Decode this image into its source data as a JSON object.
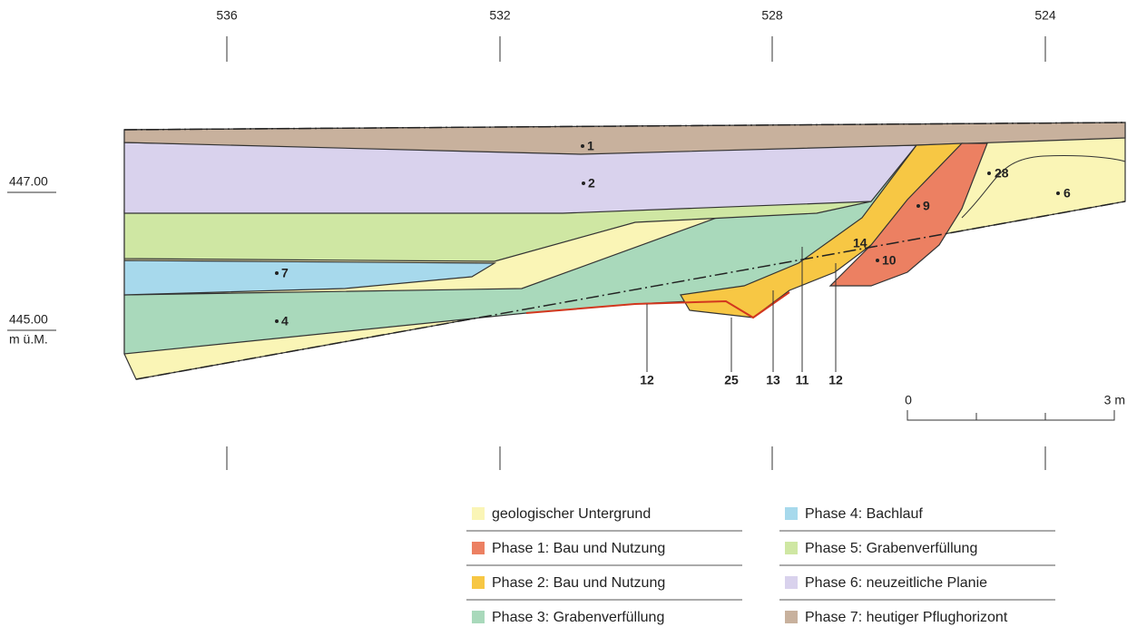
{
  "grid_labels": [
    "536",
    "532",
    "528",
    "524"
  ],
  "elevation_labels": [
    "447.00",
    "445.00",
    "m ü.M."
  ],
  "layer_labels": [
    "1",
    "2",
    "7",
    "4",
    "9",
    "14",
    "10",
    "28",
    "6"
  ],
  "find_labels": [
    "12",
    "25",
    "13",
    "11",
    "12"
  ],
  "scale": {
    "start": "0",
    "end": "3 m"
  },
  "legend": [
    {
      "label": "geologischer Untergrund",
      "color": "#faf5b6"
    },
    {
      "label": "Phase 1: Bau und Nutzung",
      "color": "#ec8062"
    },
    {
      "label": "Phase 2: Bau und Nutzung",
      "color": "#f7c744"
    },
    {
      "label": "Phase 3: Grabenverfüllung",
      "color": "#a9d9bb"
    },
    {
      "label": "Phase 4: Bachlauf",
      "color": "#a7d9ec"
    },
    {
      "label": "Phase 5: Grabenverfüllung",
      "color": "#cfe7a3"
    },
    {
      "label": "Phase 6: neuzeitliche Planie",
      "color": "#d9d2ed"
    },
    {
      "label": "Phase 7: heutiger Pflughorizont",
      "color": "#c8b19d"
    }
  ]
}
